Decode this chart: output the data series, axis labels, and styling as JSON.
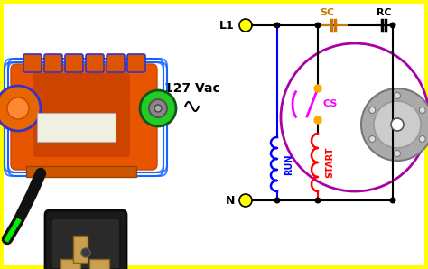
{
  "background_color": "#ffffff",
  "border_color": "#ffff00",
  "voltage_label": "127 Vac",
  "L1_label": "L1",
  "N_label": "N",
  "SC_label": "SC",
  "RC_label": "RC",
  "CS_label": "CS",
  "RUN_label": "RUN",
  "START_label": "START",
  "run_coil_color": "#0000ff",
  "start_coil_color": "#ff0000",
  "cs_switch_color": "#ff00ff",
  "sc_cap_color": "#cc7700",
  "circuit_line_color": "#000000",
  "motor_circle_color": "#aa00aa",
  "terminal_color": "#ffff00",
  "figw": 4.74,
  "figh": 2.98,
  "dpi": 100
}
